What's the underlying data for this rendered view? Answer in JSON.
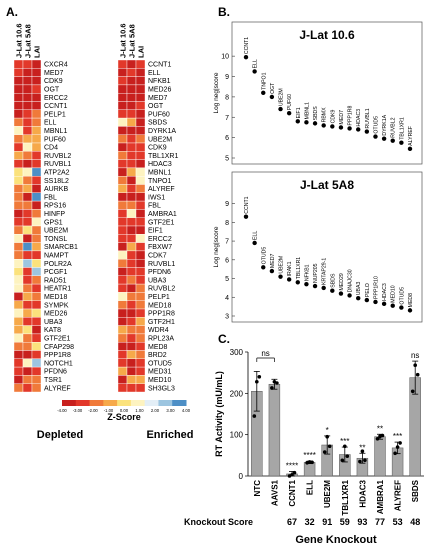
{
  "panelA": {
    "letter": "A.",
    "col_headers": [
      "J-Lat 10.6",
      "J-Lat 5A8",
      "LAI"
    ],
    "depleted_genes": [
      "CXCR4",
      "MED7",
      "CDK9",
      "OGT",
      "ERCC2",
      "CCNT1",
      "PELP1",
      "ELL",
      "MBNL1",
      "PUF60",
      "CD4",
      "RUVBL2",
      "RUVBL1",
      "ATP2A2",
      "SS18L2",
      "AURKB",
      "FBL",
      "RPS16",
      "HINFP",
      "GPS1",
      "UBE2M",
      "TONSL",
      "SMARCB1",
      "NAMPT",
      "POLR2A",
      "PCGF1",
      "RAD51",
      "HEATR1",
      "MED18",
      "SYMPK",
      "MED26",
      "UBA3",
      "KAT8",
      "GTF2E1",
      "CFAP298",
      "PPP1R8",
      "NOTCH1",
      "PFDN6",
      "TSR1",
      "ALYREF"
    ],
    "enriched_genes": [
      "CCNT1",
      "ELL",
      "NFKB1",
      "MED26",
      "MED7",
      "OGT",
      "PUF60",
      "SBDS",
      "DYRK1A",
      "UBE2M",
      "CDK9",
      "TBL1XR1",
      "HDAC3",
      "MBNL1",
      "TNPO1",
      "ALYREF",
      "IWS1",
      "FBL",
      "AMBRA1",
      "GTF2E1",
      "EIF1",
      "ERCC2",
      "FBXW7",
      "CDK7",
      "RUVBL1",
      "PFDN6",
      "UBA3",
      "RUVBL2",
      "PELP1",
      "MED18",
      "PPP1R8",
      "GTF2H1",
      "WDR4",
      "RPL23A",
      "MED8",
      "BRD2",
      "OTUD5",
      "MED31",
      "MED10",
      "SH3GL3"
    ],
    "colorbar_ticks": [
      "-4.00",
      "-3.00",
      "-2.00",
      "-1.00",
      "0.00",
      "1.00",
      "2.00",
      "3.00",
      "4.00"
    ],
    "colorbar_title": "Z-Score",
    "label_depleted": "Depleted",
    "label_enriched": "Enriched",
    "colors": {
      "deep_red": "#c8201e",
      "red": "#e2382a",
      "orange": "#f07a3a",
      "amber": "#f6a94a",
      "yellow": "#fbe27c",
      "pale": "#fdf3c0",
      "light_blue": "#9cc5e0",
      "blue": "#4d8fc6"
    }
  },
  "panelB": {
    "letter": "B.",
    "ylabel": "Log neg|score",
    "plots": [
      {
        "title": "J-Lat 10.6",
        "yticks": [
          5,
          6,
          7,
          8,
          9,
          10
        ],
        "ylim": [
          5,
          10.4
        ],
        "points": [
          {
            "label": "CCNT1",
            "y": 9.95
          },
          {
            "label": "ELL",
            "y": 9.25
          },
          {
            "label": "TNPO1",
            "y": 8.2
          },
          {
            "label": "OGT",
            "y": 8.0
          },
          {
            "label": "UBE2M",
            "y": 7.4
          },
          {
            "label": "PUF60",
            "y": 7.2
          },
          {
            "label": "EIF1",
            "y": 6.8
          },
          {
            "label": "MBNL1",
            "y": 6.75
          },
          {
            "label": "SBDS",
            "y": 6.7
          },
          {
            "label": "RBMX",
            "y": 6.6
          },
          {
            "label": "CDK9",
            "y": 6.55
          },
          {
            "label": "MED7",
            "y": 6.5
          },
          {
            "label": "PPP1R8",
            "y": 6.45
          },
          {
            "label": "HDAC3",
            "y": 6.4
          },
          {
            "label": "RUVBL1",
            "y": 6.3
          },
          {
            "label": "OTUD5",
            "y": 6.05
          },
          {
            "label": "DYRK1A",
            "y": 5.95
          },
          {
            "label": "RUVBL2",
            "y": 5.85
          },
          {
            "label": "TBL1XR1",
            "y": 5.75
          },
          {
            "label": "ALYREF",
            "y": 5.45
          }
        ]
      },
      {
        "title": "J-Lat 5A8",
        "yticks": [
          3,
          4,
          5,
          6,
          7,
          8,
          9
        ],
        "ylim": [
          3,
          9.3
        ],
        "points": [
          {
            "label": "CCNT1",
            "y": 8.3
          },
          {
            "label": "ELL",
            "y": 6.9
          },
          {
            "label": "OTUD5",
            "y": 5.6
          },
          {
            "label": "MED7",
            "y": 5.4
          },
          {
            "label": "UBE2M",
            "y": 5.1
          },
          {
            "label": "IRAK1",
            "y": 4.95
          },
          {
            "label": "TBL1XR1",
            "y": 4.8
          },
          {
            "label": "NFKB1",
            "y": 4.7
          },
          {
            "label": "NUP205",
            "y": 4.6
          },
          {
            "label": "KRTAP29-1",
            "y": 4.5
          },
          {
            "label": "SBDS",
            "y": 4.35
          },
          {
            "label": "MED29",
            "y": 4.2
          },
          {
            "label": "DNAJC30",
            "y": 4.1
          },
          {
            "label": "UBA3",
            "y": 3.95
          },
          {
            "label": "PELO",
            "y": 3.85
          },
          {
            "label": "PPP1R10",
            "y": 3.75
          },
          {
            "label": "HDAC3",
            "y": 3.65
          },
          {
            "label": "MED10",
            "y": 3.55
          },
          {
            "label": "OTUD5",
            "y": 3.45
          },
          {
            "label": "MED8",
            "y": 3.3
          }
        ]
      }
    ]
  },
  "panelC": {
    "letter": "C.",
    "chart_data": {
      "type": "bar",
      "categories": [
        "NTC",
        "AAVS1",
        "CCNT1",
        "ELL",
        "UBE2M",
        "TBL1XR1",
        "HDAC3",
        "AMBRA1",
        "ALYREF",
        "SBDS"
      ],
      "values": [
        205,
        222,
        5,
        33,
        75,
        52,
        43,
        95,
        68,
        238
      ],
      "errors": [
        48,
        12,
        6,
        3,
        22,
        18,
        12,
        6,
        14,
        40
      ],
      "points": [
        [
          145,
          228,
          240
        ],
        [
          213,
          228,
          225
        ],
        [
          0,
          3,
          8
        ],
        [
          32,
          34,
          33
        ],
        [
          58,
          95,
          72
        ],
        [
          38,
          72,
          48
        ],
        [
          35,
          60,
          38
        ],
        [
          90,
          96,
          98
        ],
        [
          55,
          70,
          80
        ],
        [
          205,
          268,
          245
        ]
      ],
      "significance": [
        "",
        "",
        "****",
        "****",
        "*",
        "***",
        "**",
        "**",
        "***",
        "ns"
      ],
      "ns_bracket": "ns",
      "knockout_scores": [
        "",
        "",
        "67",
        "32",
        "91",
        "59",
        "93",
        "77",
        "53",
        "48"
      ],
      "knockout_score_label": "Knockout Score",
      "ylabel": "RT Activity (mU/mL)",
      "xlabel": "Gene Knockout",
      "ylim": [
        0,
        300
      ],
      "yticks": [
        0,
        100,
        200,
        300
      ],
      "bar_color": "#a6a6a6"
    }
  }
}
